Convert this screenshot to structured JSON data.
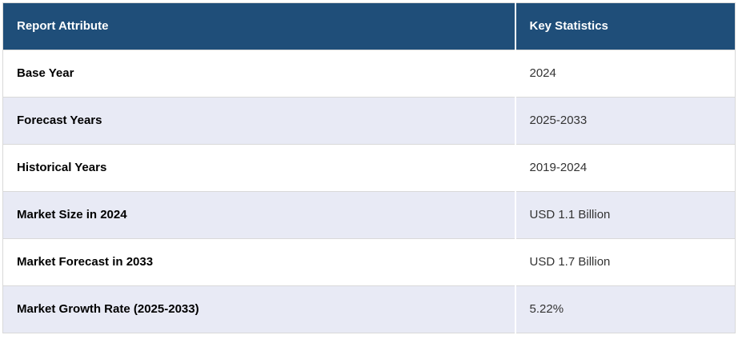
{
  "colors": {
    "header_bg": "#1F4E79",
    "header_text": "#FFFFFF",
    "row_bg": "#FFFFFF",
    "row_alt_bg": "#E8EAF5",
    "border": "#D9D9D9",
    "attribute_text": "#000000",
    "value_text": "#333333"
  },
  "table": {
    "header": {
      "attribute_label": "Report Attribute",
      "value_label": "Key Statistics"
    },
    "rows": [
      {
        "attribute": "Base Year",
        "value": "2024"
      },
      {
        "attribute": "Forecast Years",
        "value": "2025-2033"
      },
      {
        "attribute": "Historical Years",
        "value": "2019-2024"
      },
      {
        "attribute": "Market Size in 2024",
        "value": "USD 1.1 Billion"
      },
      {
        "attribute": "Market Forecast in 2033",
        "value": "USD 1.7 Billion"
      },
      {
        "attribute": "Market Growth Rate (2025-2033)",
        "value": "5.22%"
      }
    ]
  },
  "chart_data": {
    "type": "table",
    "title": "Report Attribute / Key Statistics",
    "columns": [
      "Report Attribute",
      "Key Statistics"
    ],
    "rows": [
      [
        "Base Year",
        "2024"
      ],
      [
        "Forecast Years",
        "2025-2033"
      ],
      [
        "Historical Years",
        "2019-2024"
      ],
      [
        "Market Size in 2024",
        "USD 1.1 Billion"
      ],
      [
        "Market Forecast in 2033",
        "USD 1.7 Billion"
      ],
      [
        "Market Growth Rate (2025-2033)",
        "5.22%"
      ]
    ],
    "notes": {
      "base_year": 2024,
      "forecast_years": [
        2025,
        2033
      ],
      "historical_years": [
        2019,
        2024
      ],
      "market_size_2024_usd_billion": 1.1,
      "market_forecast_2033_usd_billion": 1.7,
      "market_growth_rate_cagr_percent": 5.22
    }
  }
}
